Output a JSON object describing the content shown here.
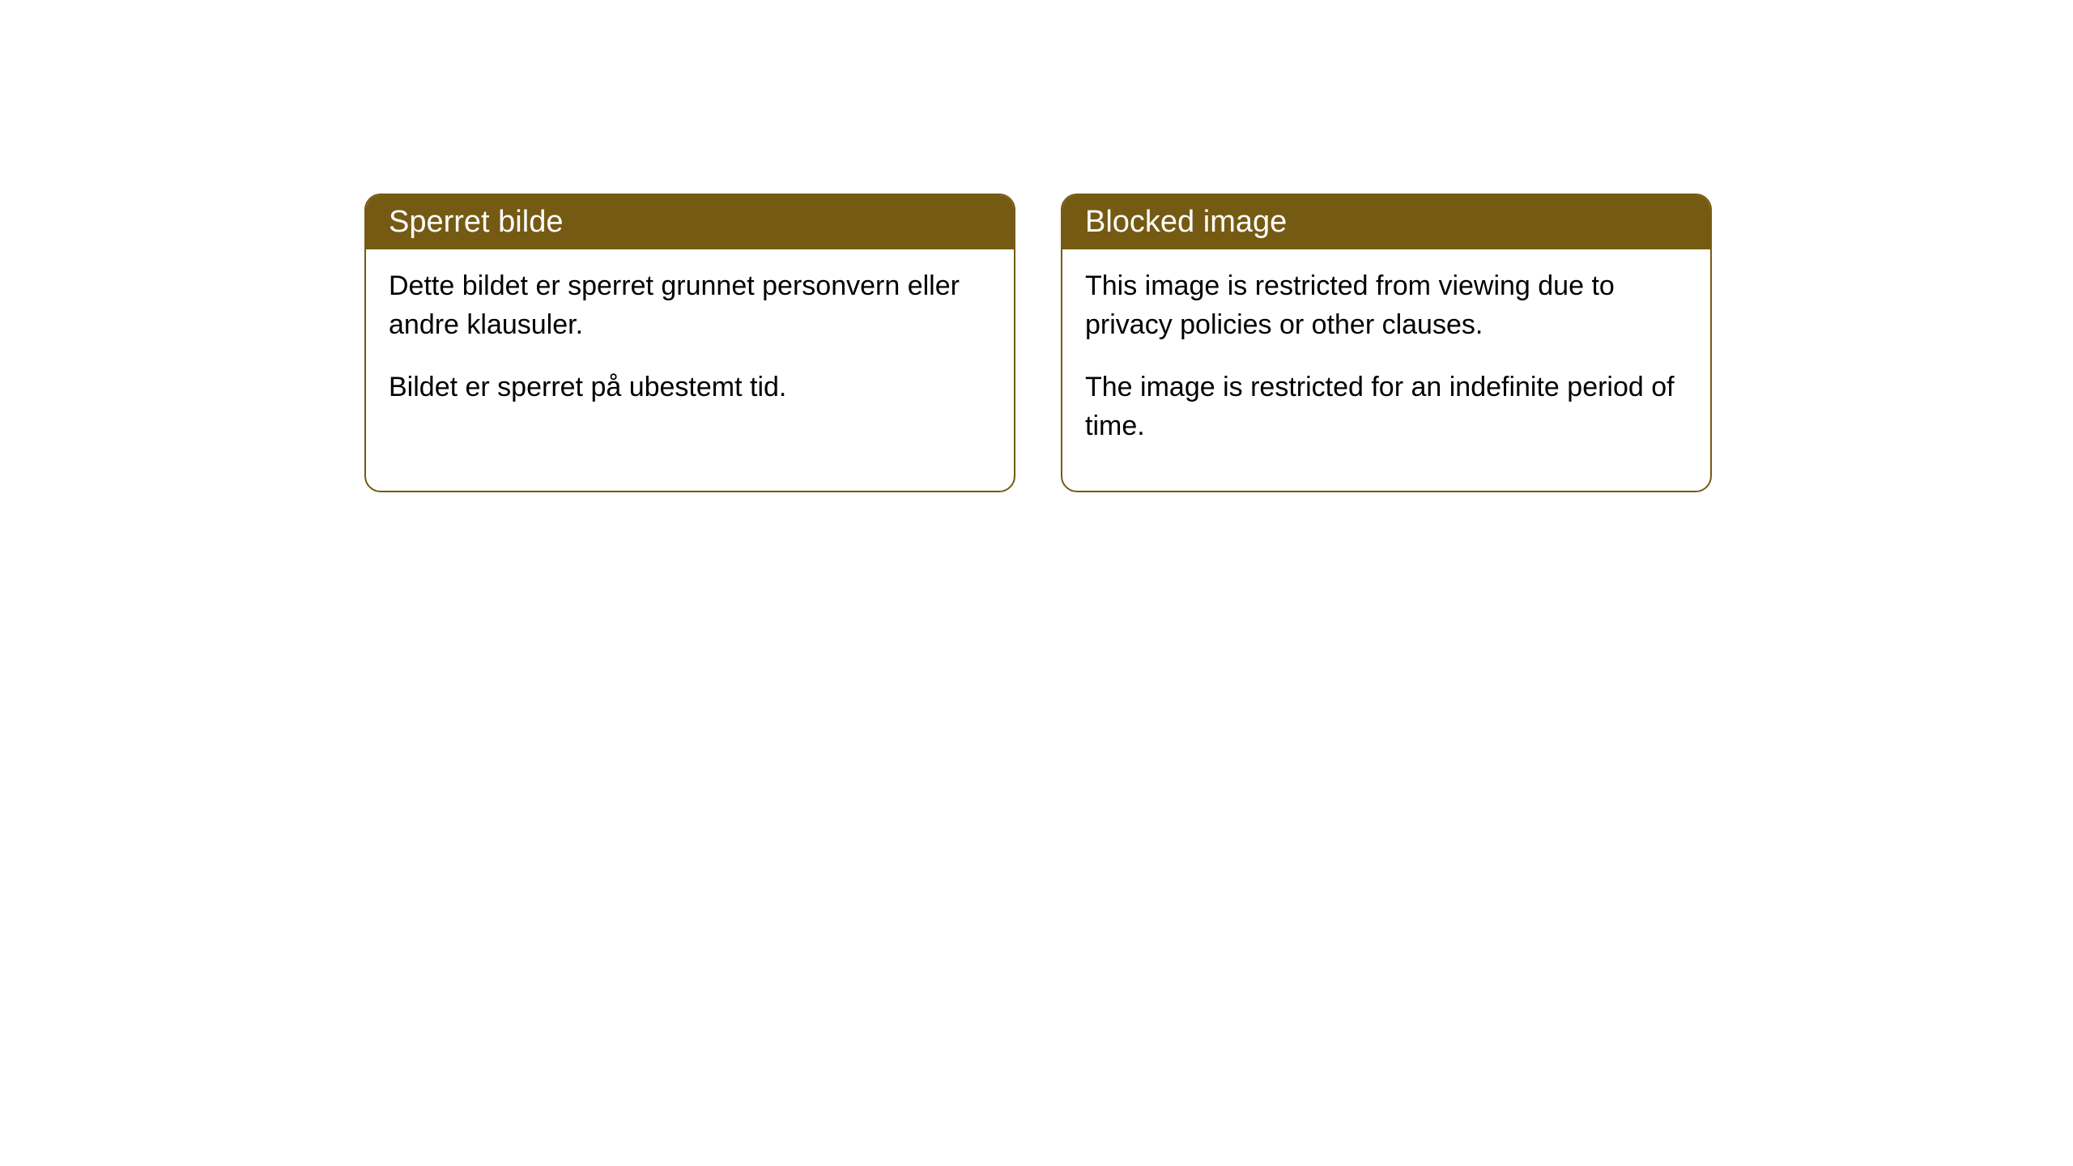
{
  "cards": [
    {
      "title": "Sperret bilde",
      "paragraph1": "Dette bildet er sperret grunnet personvern eller andre klausuler.",
      "paragraph2": "Bildet er sperret på ubestemt tid."
    },
    {
      "title": "Blocked image",
      "paragraph1": "This image is restricted from viewing due to privacy policies or other clauses.",
      "paragraph2": "The image is restricted for an indefinite period of time."
    }
  ],
  "styling": {
    "header_background": "#755a13",
    "header_text_color": "#ffffff",
    "border_color": "#755a13",
    "body_background": "#ffffff",
    "body_text_color": "#000000",
    "border_radius": 20,
    "header_fontsize": 38,
    "body_fontsize": 34
  }
}
